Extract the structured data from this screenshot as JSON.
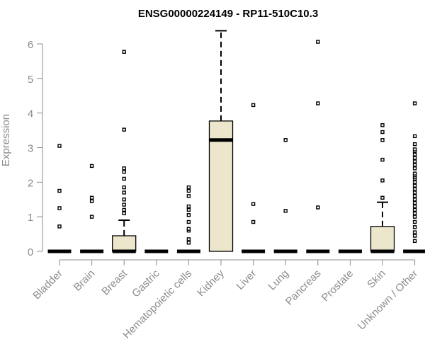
{
  "chart_data": {
    "type": "box",
    "title": "ENSG00000224149 - RP11-510C10.3",
    "xlabel": "",
    "ylabel": "Expression",
    "ylim": [
      0,
      6.4
    ],
    "yticks": [
      0,
      1,
      2,
      3,
      4,
      5,
      6
    ],
    "box_color": "#ece6cd",
    "categories": [
      "Bladder",
      "Brain",
      "Breast",
      "Gastric",
      "Hematopoietic cells",
      "Kidney",
      "Liver",
      "Lung",
      "Pancreas",
      "Prostate",
      "Skin",
      "Unknown / Other"
    ],
    "boxes": [
      {
        "name": "Bladder",
        "min": 0,
        "q1": 0,
        "median": 0,
        "q3": 0,
        "max": 0,
        "outliers": [
          0.72,
          1.25,
          1.75,
          3.05
        ]
      },
      {
        "name": "Brain",
        "min": 0,
        "q1": 0,
        "median": 0,
        "q3": 0,
        "max": 0,
        "outliers": [
          1.0,
          1.45,
          1.55,
          2.47
        ]
      },
      {
        "name": "Breast",
        "min": 0,
        "q1": 0,
        "median": 0,
        "q3": 0.45,
        "max": 0.9,
        "outliers": [
          1.1,
          1.2,
          1.35,
          1.5,
          1.7,
          1.85,
          2.1,
          2.3,
          2.4,
          3.52,
          5.77
        ]
      },
      {
        "name": "Gastric",
        "min": 0,
        "q1": 0,
        "median": 0,
        "q3": 0,
        "max": 0,
        "outliers": []
      },
      {
        "name": "Hematopoietic cells",
        "min": 0,
        "q1": 0,
        "median": 0,
        "q3": 0,
        "max": 0,
        "outliers": [
          0.25,
          0.35,
          0.6,
          0.65,
          0.85,
          1.05,
          1.2,
          1.3,
          1.6,
          1.75,
          1.85
        ]
      },
      {
        "name": "Kidney",
        "min": 0,
        "q1": 0,
        "median": 3.22,
        "q3": 3.77,
        "max": 6.38,
        "outliers": []
      },
      {
        "name": "Liver",
        "min": 0,
        "q1": 0,
        "median": 0,
        "q3": 0,
        "max": 0,
        "outliers": [
          0.85,
          1.37,
          4.23
        ]
      },
      {
        "name": "Lung",
        "min": 0,
        "q1": 0,
        "median": 0,
        "q3": 0,
        "max": 0,
        "outliers": [
          1.17,
          3.22
        ]
      },
      {
        "name": "Pancreas",
        "min": 0,
        "q1": 0,
        "median": 0,
        "q3": 0,
        "max": 0,
        "outliers": [
          1.27,
          4.28,
          6.06
        ]
      },
      {
        "name": "Prostate",
        "min": 0,
        "q1": 0,
        "median": 0,
        "q3": 0,
        "max": 0,
        "outliers": []
      },
      {
        "name": "Skin",
        "min": 0,
        "q1": 0,
        "median": 0,
        "q3": 0.72,
        "max": 1.42,
        "outliers": [
          1.55,
          2.05,
          2.65,
          3.22,
          3.45,
          3.65
        ]
      },
      {
        "name": "Unknown / Other",
        "min": 0,
        "q1": 0,
        "median": 0,
        "q3": 0,
        "max": 0,
        "outliers": [
          0.3,
          0.45,
          0.55,
          0.7,
          0.85,
          1.0,
          1.1,
          1.2,
          1.3,
          1.4,
          1.5,
          1.6,
          1.7,
          1.8,
          1.9,
          2.0,
          2.1,
          2.15,
          2.2,
          2.25,
          2.4,
          2.5,
          2.6,
          2.7,
          2.8,
          2.9,
          2.95,
          3.1,
          3.33,
          4.28
        ]
      }
    ]
  }
}
